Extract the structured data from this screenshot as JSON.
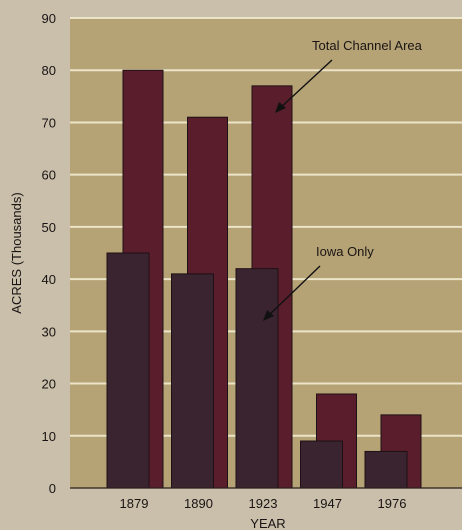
{
  "chart_data": {
    "type": "bar",
    "categories": [
      "1879",
      "1890",
      "1923",
      "1947",
      "1976"
    ],
    "series": [
      {
        "name": "Total Channel Area",
        "values": [
          80,
          71,
          77,
          18,
          14
        ]
      },
      {
        "name": "Iowa Only",
        "values": [
          45,
          41,
          42,
          9,
          7
        ]
      }
    ],
    "xlabel": "YEAR",
    "ylabel": "ACRES (Thousands)",
    "ylim": [
      0,
      90
    ],
    "yticks": [
      0,
      10,
      20,
      30,
      40,
      50,
      60,
      70,
      80,
      90
    ],
    "grid": true,
    "annotations": [
      "Total Channel Area",
      "Iowa Only"
    ],
    "colors": {
      "plot_background": "#b5a376",
      "gridline": "#ece4c8",
      "total_bar": "#5a1d2c",
      "iowa_bar": "#3a2430",
      "page_background": "#c9bfaa"
    }
  }
}
